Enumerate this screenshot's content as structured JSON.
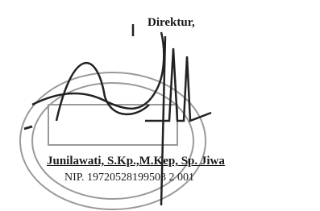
{
  "signature": {
    "title": "Direktur,",
    "name": "Junilawati, S.Kp.,M.Kep, Sp. Jiwa",
    "nip": "NIP. 19720528199503 2 001"
  }
}
